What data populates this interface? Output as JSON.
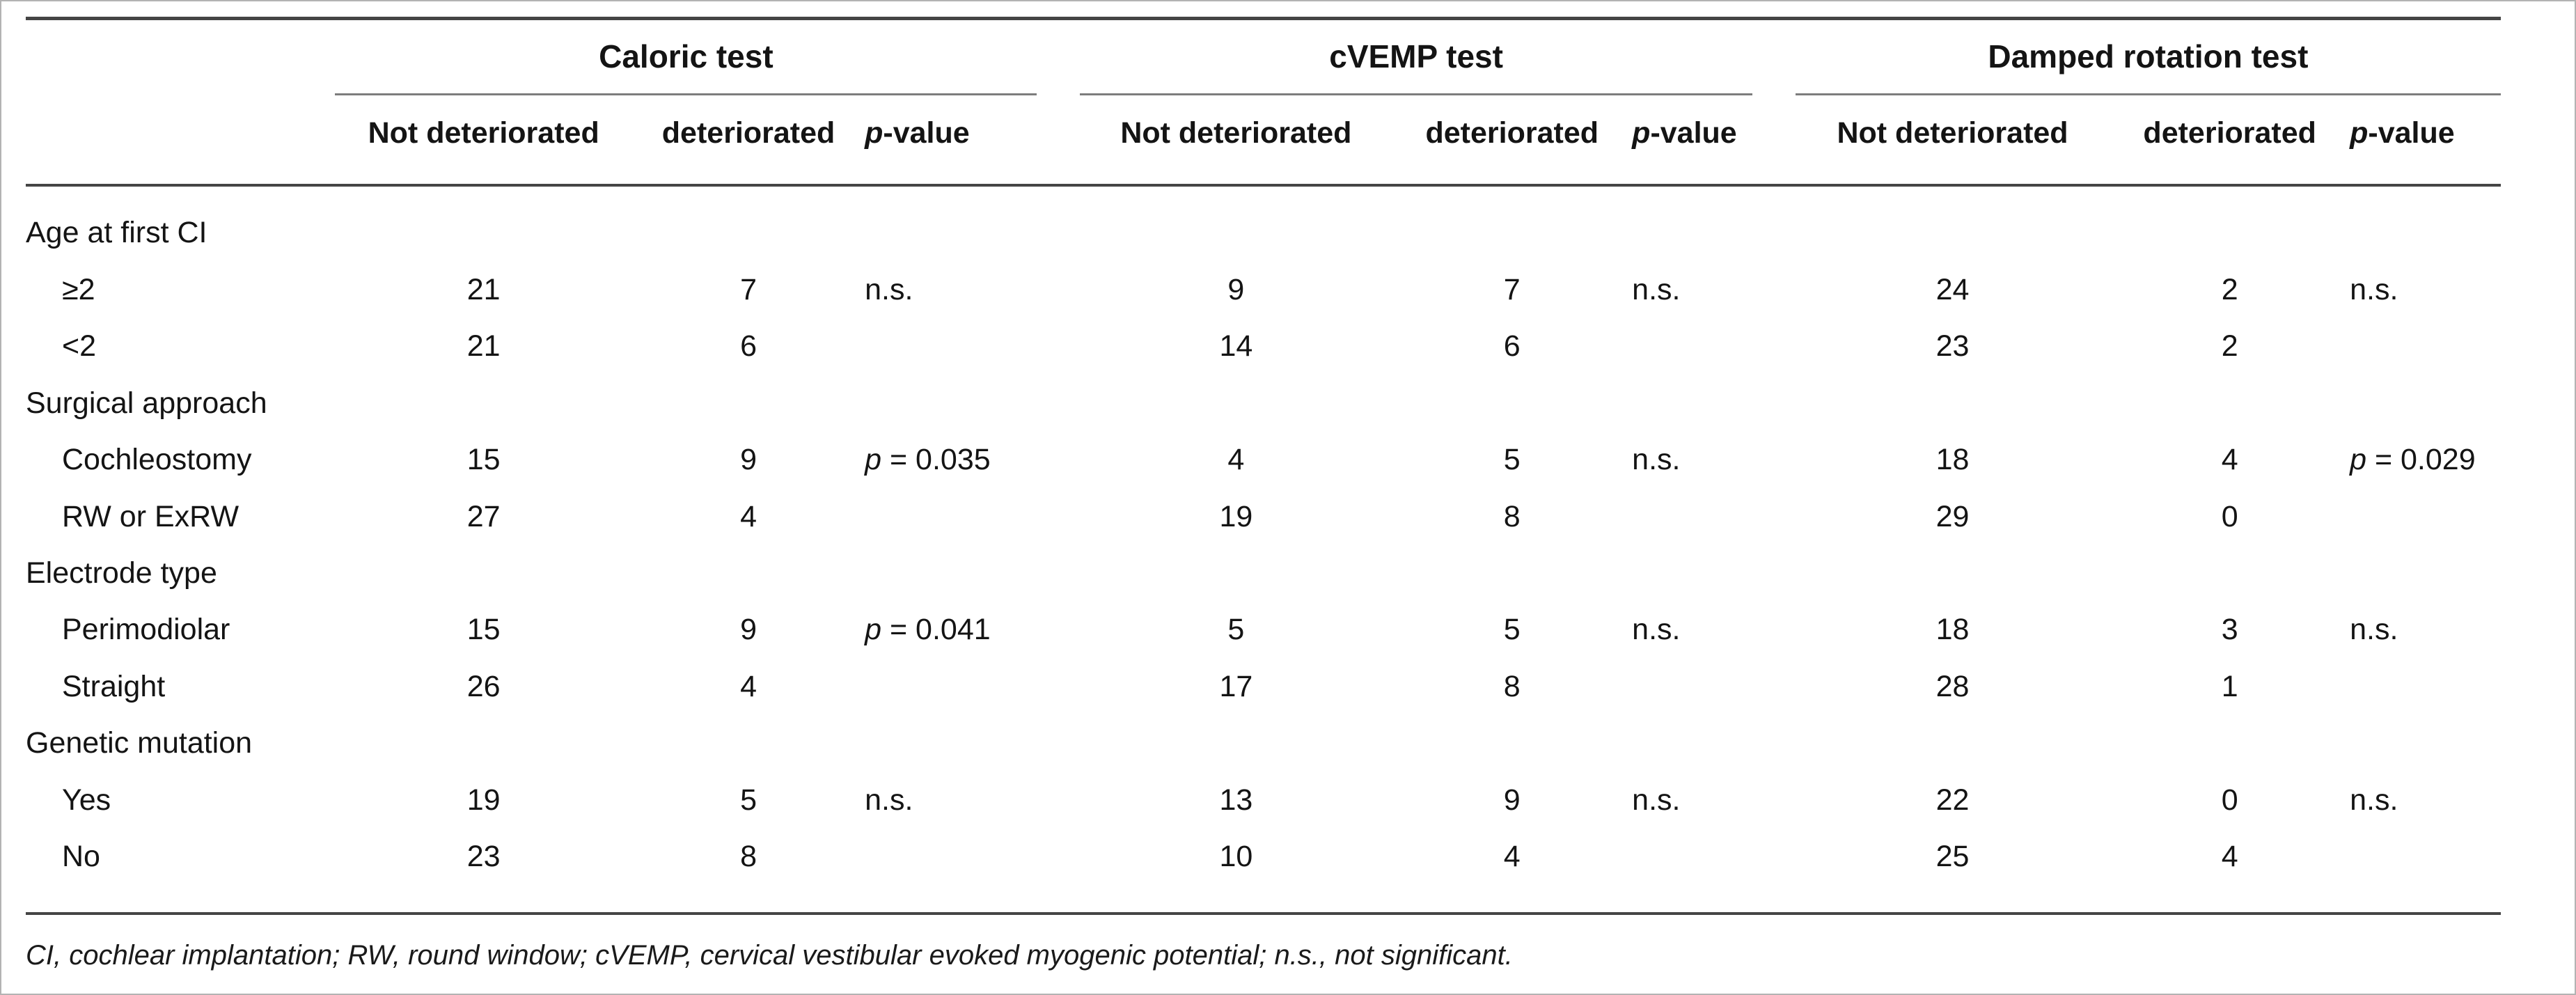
{
  "table": {
    "groups": [
      {
        "label": "Caloric test"
      },
      {
        "label": "cVEMP test"
      },
      {
        "label": "Damped rotation test"
      }
    ],
    "columns": [
      "Not deteriorated",
      "deteriorated",
      "p-value"
    ],
    "sections": [
      {
        "label": "Age at first CI",
        "rows": [
          {
            "label": "≥2",
            "cells": [
              "21",
              "7",
              "n.s.",
              "9",
              "7",
              "n.s.",
              "24",
              "2",
              "n.s."
            ]
          },
          {
            "label": "<2",
            "cells": [
              "21",
              "6",
              "",
              "14",
              "6",
              "",
              "23",
              "2",
              ""
            ]
          }
        ]
      },
      {
        "label": "Surgical approach",
        "rows": [
          {
            "label": "Cochleostomy",
            "cells": [
              "15",
              "9",
              "p = 0.035",
              "4",
              "5",
              "n.s.",
              "18",
              "4",
              "p = 0.029"
            ]
          },
          {
            "label": "RW or ExRW",
            "cells": [
              "27",
              "4",
              "",
              "19",
              "8",
              "",
              "29",
              "0",
              ""
            ]
          }
        ]
      },
      {
        "label": "Electrode type",
        "rows": [
          {
            "label": "Perimodiolar",
            "cells": [
              "15",
              "9",
              "p = 0.041",
              "5",
              "5",
              "n.s.",
              "18",
              "3",
              "n.s."
            ]
          },
          {
            "label": "Straight",
            "cells": [
              "26",
              "4",
              "",
              "17",
              "8",
              "",
              "28",
              "1",
              ""
            ]
          }
        ]
      },
      {
        "label": "Genetic mutation",
        "rows": [
          {
            "label": "Yes",
            "cells": [
              "19",
              "5",
              "n.s.",
              "13",
              "9",
              "n.s.",
              "22",
              "0",
              "n.s."
            ]
          },
          {
            "label": "No",
            "cells": [
              "23",
              "8",
              "",
              "10",
              "4",
              "",
              "25",
              "4",
              ""
            ]
          }
        ]
      }
    ],
    "footnote": "CI, cochlear implantation; RW, round window; cVEMP, cervical vestibular evoked myogenic potential; n.s., not significant."
  }
}
